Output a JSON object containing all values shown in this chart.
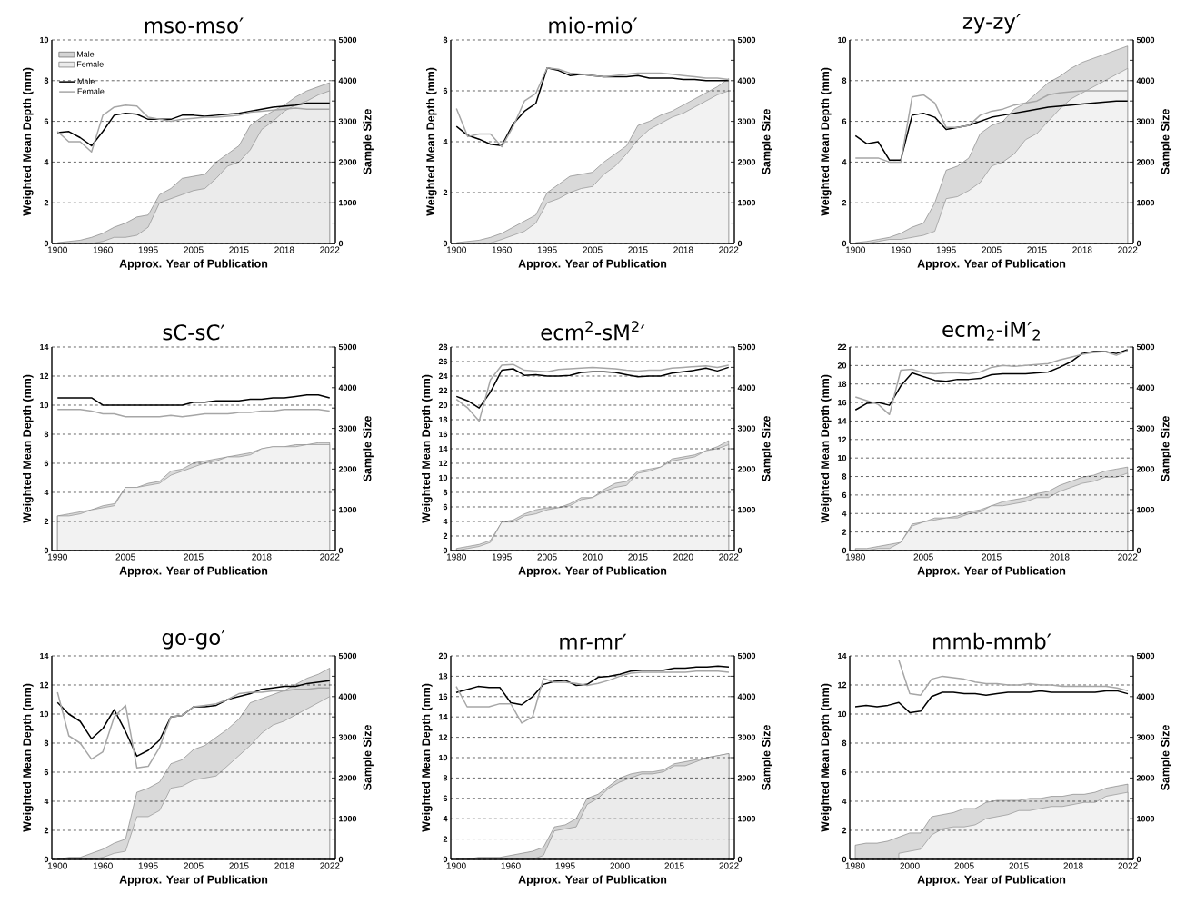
{
  "chart_data": [
    {
      "type": "line",
      "title": "mso-mso′",
      "xlabel": "Approx. Year of Publication",
      "ylabel": "Weighted Mean Depth (mm)",
      "y2label": "Sample Size",
      "legend": "top left",
      "grid": "y",
      "categories": [
        "1900",
        null,
        null,
        null,
        "1960",
        null,
        null,
        null,
        "1995",
        null,
        null,
        null,
        "2005",
        null,
        null,
        null,
        "2015",
        null,
        null,
        null,
        "2018",
        null,
        null,
        null,
        "2022"
      ],
      "ylim": [
        0,
        10
      ],
      "yticks": [
        0,
        2,
        4,
        6,
        8,
        10
      ],
      "y2lim": [
        0,
        5000
      ],
      "y2ticks": [
        0,
        {
          "value": 500,
          "label": null
        },
        1000,
        {
          "value": 1500,
          "label": null
        },
        2000,
        {
          "value": 2500,
          "label": null
        },
        3000,
        {
          "value": 3500,
          "label": null
        },
        4000,
        {
          "value": 4500,
          "label": null
        },
        5000
      ],
      "series": [
        {
          "name": "Male",
          "type": "area",
          "axis": "y2",
          "color": "#d4d4d4",
          "values": [
            20,
            50,
            80,
            150,
            250,
            400,
            500,
            650,
            700,
            1200,
            1350,
            1600,
            1650,
            1700,
            2000,
            2200,
            2400,
            2900,
            3100,
            3250,
            3400,
            3600,
            3750,
            3850,
            3950
          ]
        },
        {
          "name": "Female",
          "type": "area",
          "axis": "y2",
          "color": "#ebebeb",
          "values": [
            0,
            0,
            0,
            0,
            50,
            150,
            150,
            200,
            400,
            1000,
            1100,
            1200,
            1300,
            1350,
            1600,
            1900,
            2000,
            2300,
            2800,
            3000,
            3250,
            3400,
            3500,
            3650,
            3750
          ]
        },
        {
          "name": "Male",
          "color": "#000000",
          "values": [
            5.45,
            5.5,
            5.2,
            4.8,
            5.5,
            6.3,
            6.4,
            6.35,
            6.1,
            6.1,
            6.1,
            6.3,
            6.3,
            6.25,
            6.3,
            6.35,
            6.4,
            6.5,
            6.6,
            6.7,
            6.75,
            6.8,
            6.9,
            6.9,
            6.9
          ]
        },
        {
          "name": "Female",
          "color": "#a6a6a6",
          "values": [
            5.5,
            5.0,
            5.0,
            4.5,
            6.3,
            6.7,
            6.8,
            6.75,
            6.2,
            6.1,
            6.0,
            6.1,
            6.15,
            6.2,
            6.2,
            6.25,
            6.3,
            6.45,
            6.5,
            6.55,
            6.6,
            6.65,
            6.6,
            6.6,
            6.6
          ]
        }
      ]
    },
    {
      "type": "line",
      "title": "mio-mio′",
      "xlabel": "Approx. Year of Publication",
      "ylabel": "Weighted Mean Depth (mm)",
      "y2label": "Sample Size",
      "grid": "y",
      "categories": [
        "1900",
        null,
        null,
        null,
        "1960",
        null,
        null,
        null,
        "1995",
        null,
        null,
        null,
        "2005",
        null,
        null,
        null,
        "2015",
        null,
        null,
        null,
        "2018",
        null,
        null,
        null,
        "2022"
      ],
      "ylim": [
        0,
        8
      ],
      "yticks": [
        0,
        2,
        4,
        6,
        8
      ],
      "y2lim": [
        0,
        5000
      ],
      "y2ticks": [
        0,
        {
          "value": 500,
          "label": null
        },
        1000,
        {
          "value": 1500,
          "label": null
        },
        2000,
        {
          "value": 2500,
          "label": null
        },
        3000,
        {
          "value": 3500,
          "label": null
        },
        4000,
        {
          "value": 4500,
          "label": null
        },
        5000
      ],
      "series": [
        {
          "type": "area",
          "axis": "y2",
          "color": "#d9d9d9",
          "values": [
            20,
            50,
            80,
            150,
            250,
            400,
            550,
            700,
            1250,
            1450,
            1650,
            1700,
            1750,
            2000,
            2200,
            2400,
            2900,
            3000,
            3150,
            3250,
            3400,
            3550,
            3700,
            3850,
            4050
          ]
        },
        {
          "type": "area",
          "axis": "y2",
          "color": "#f2f2f2",
          "values": [
            0,
            0,
            0,
            10,
            100,
            200,
            300,
            500,
            1000,
            1100,
            1250,
            1350,
            1400,
            1700,
            1900,
            2200,
            2550,
            2800,
            2950,
            3100,
            3200,
            3350,
            3500,
            3650,
            3750
          ]
        },
        {
          "color": "#000000",
          "values": [
            4.6,
            4.25,
            4.1,
            3.9,
            3.85,
            4.7,
            5.2,
            5.5,
            6.9,
            6.8,
            6.6,
            6.65,
            6.6,
            6.55,
            6.55,
            6.55,
            6.6,
            6.5,
            6.5,
            6.5,
            6.45,
            6.45,
            6.4,
            6.4,
            6.4
          ]
        },
        {
          "color": "#a6a6a6",
          "values": [
            5.3,
            4.2,
            4.3,
            4.3,
            3.8,
            4.6,
            5.6,
            5.9,
            6.9,
            6.85,
            6.7,
            6.65,
            6.6,
            6.55,
            6.6,
            6.65,
            6.7,
            6.7,
            6.7,
            6.65,
            6.6,
            6.55,
            6.5,
            6.5,
            6.45
          ]
        }
      ]
    },
    {
      "type": "line",
      "title": "zy-zy′",
      "xlabel": "Approx. Year of Publication",
      "ylabel": "Weighted Mean Depth (mm)",
      "y2label": "Sample Size",
      "grid": "y",
      "categories": [
        "1900",
        null,
        null,
        null,
        "1960",
        null,
        null,
        null,
        "1995",
        null,
        null,
        null,
        "2005",
        null,
        null,
        null,
        "2015",
        null,
        null,
        null,
        "2018",
        null,
        null,
        null,
        "2022"
      ],
      "ylim": [
        0,
        10
      ],
      "yticks": [
        0,
        2,
        4,
        6,
        8,
        10
      ],
      "y2lim": [
        0,
        5000
      ],
      "y2ticks": [
        0,
        {
          "value": 500,
          "label": null
        },
        1000,
        {
          "value": 1500,
          "label": null
        },
        2000,
        {
          "value": 2500,
          "label": null
        },
        3000,
        {
          "value": 3500,
          "label": null
        },
        4000,
        {
          "value": 4500,
          "label": null
        },
        5000
      ],
      "series": [
        {
          "type": "area",
          "axis": "y2",
          "color": "#d9d9d9",
          "values": [
            20,
            50,
            100,
            150,
            250,
            400,
            500,
            1000,
            1800,
            1900,
            2100,
            2700,
            2900,
            3000,
            3300,
            3450,
            3700,
            3950,
            4100,
            4300,
            4450,
            4550,
            4650,
            4750,
            4850
          ]
        },
        {
          "type": "area",
          "axis": "y2",
          "color": "#f2f2f2",
          "values": [
            0,
            0,
            50,
            100,
            100,
            150,
            200,
            300,
            1100,
            1150,
            1300,
            1500,
            1900,
            2000,
            2200,
            2550,
            2700,
            3000,
            3300,
            3550,
            3700,
            3850,
            4000,
            4150,
            4300
          ]
        },
        {
          "color": "#000000",
          "values": [
            5.3,
            4.9,
            5.0,
            4.1,
            4.1,
            6.3,
            6.4,
            6.2,
            5.6,
            5.7,
            5.8,
            6.0,
            6.2,
            6.3,
            6.4,
            6.5,
            6.6,
            6.7,
            6.75,
            6.8,
            6.85,
            6.9,
            6.95,
            7.0,
            7.0
          ]
        },
        {
          "color": "#a6a6a6",
          "values": [
            4.2,
            4.2,
            4.2,
            4.0,
            4.0,
            7.2,
            7.3,
            6.9,
            5.7,
            5.7,
            5.8,
            6.3,
            6.5,
            6.6,
            6.8,
            6.9,
            7.0,
            7.3,
            7.4,
            7.45,
            7.5,
            7.5,
            7.5,
            7.5,
            7.5
          ]
        }
      ]
    },
    {
      "type": "line",
      "title": "sC-sC′",
      "xlabel": "Approx. Year of Publication",
      "ylabel": "Weighted Mean Depth (mm)",
      "y2label": "Sample Size",
      "grid": "y",
      "categories": [
        "1990",
        null,
        null,
        null,
        null,
        null,
        "2005",
        null,
        null,
        null,
        null,
        null,
        "2015",
        null,
        null,
        null,
        null,
        null,
        "2018",
        null,
        null,
        null,
        null,
        null,
        "2022"
      ],
      "ylim": [
        0,
        14
      ],
      "yticks": [
        0,
        2,
        4,
        6,
        8,
        10,
        12,
        14
      ],
      "y2lim": [
        0,
        5000
      ],
      "y2ticks": [
        0,
        {
          "value": 500,
          "label": null
        },
        1000,
        {
          "value": 1500,
          "label": null
        },
        2000,
        {
          "value": 2500,
          "label": null
        },
        3000,
        {
          "value": 3500,
          "label": null
        },
        4000,
        {
          "value": 4500,
          "label": null
        },
        5000
      ],
      "series": [
        {
          "type": "area",
          "axis": "y2",
          "color": "#d9d9d9",
          "values": [
            850,
            900,
            950,
            1000,
            1100,
            1150,
            1550,
            1550,
            1650,
            1700,
            1950,
            2000,
            2150,
            2200,
            2250,
            2300,
            2350,
            2400,
            2500,
            2550,
            2550,
            2600,
            2600,
            2650,
            2650
          ]
        },
        {
          "type": "area",
          "axis": "y2",
          "color": "#f2f2f2",
          "values": [
            850,
            850,
            900,
            1000,
            1050,
            1100,
            1550,
            1550,
            1600,
            1650,
            1850,
            1950,
            2050,
            2150,
            2200,
            2300,
            2300,
            2350,
            2500,
            2550,
            2550,
            2550,
            2600,
            2600,
            2600
          ]
        },
        {
          "color": "#000000",
          "values": [
            10.5,
            10.5,
            10.5,
            10.5,
            10.0,
            10.0,
            10.0,
            10.0,
            10.0,
            10.0,
            10.0,
            10.0,
            10.2,
            10.2,
            10.3,
            10.3,
            10.3,
            10.4,
            10.4,
            10.5,
            10.5,
            10.6,
            10.7,
            10.7,
            10.5
          ]
        },
        {
          "color": "#a6a6a6",
          "values": [
            9.7,
            9.7,
            9.7,
            9.6,
            9.4,
            9.4,
            9.2,
            9.2,
            9.2,
            9.2,
            9.3,
            9.2,
            9.3,
            9.4,
            9.4,
            9.4,
            9.5,
            9.5,
            9.6,
            9.6,
            9.7,
            9.7,
            9.7,
            9.7,
            9.6
          ]
        }
      ]
    },
    {
      "type": "line",
      "title": "ecm$^{2}$-sM$^{2}$′",
      "xlabel": "Approx. Year of Publication",
      "ylabel": "Weighted Mean Depth (mm)",
      "y2label": "Sample Size",
      "grid": "y",
      "categories": [
        "1980",
        null,
        null,
        null,
        "1995",
        null,
        null,
        null,
        "2005",
        null,
        null,
        null,
        "2010",
        null,
        null,
        null,
        "2015",
        null,
        null,
        null,
        "2020",
        null,
        null,
        null,
        "2022"
      ],
      "ylim": [
        0,
        28
      ],
      "yticks": [
        0,
        2,
        4,
        6,
        8,
        10,
        12,
        14,
        16,
        18,
        20,
        22,
        24,
        26,
        28
      ],
      "y2lim": [
        0,
        5000
      ],
      "y2ticks": [
        0,
        {
          "value": 500,
          "label": null
        },
        1000,
        {
          "value": 1500,
          "label": null
        },
        2000,
        {
          "value": 2500,
          "label": null
        },
        3000,
        {
          "value": 3500,
          "label": null
        },
        4000,
        {
          "value": 4500,
          "label": null
        },
        5000
      ],
      "series": [
        {
          "type": "area",
          "axis": "y2",
          "color": "#d9d9d9",
          "values": [
            50,
            100,
            150,
            250,
            700,
            750,
            900,
            1000,
            1050,
            1050,
            1150,
            1300,
            1300,
            1500,
            1650,
            1700,
            1950,
            2000,
            2050,
            2250,
            2300,
            2350,
            2450,
            2550,
            2700
          ]
        },
        {
          "type": "area",
          "axis": "y2",
          "color": "#f2f2f2",
          "values": [
            0,
            50,
            100,
            200,
            700,
            700,
            850,
            900,
            1000,
            1050,
            1100,
            1250,
            1300,
            1450,
            1550,
            1600,
            1900,
            1950,
            2050,
            2200,
            2250,
            2300,
            2450,
            2500,
            2600
          ]
        },
        {
          "color": "#000000",
          "values": [
            21.2,
            20.6,
            19.6,
            21.8,
            24.8,
            25.0,
            24.1,
            24.2,
            24.0,
            24.0,
            24.1,
            24.5,
            24.6,
            24.6,
            24.5,
            24.2,
            23.9,
            24.0,
            24.0,
            24.4,
            24.6,
            24.8,
            25.1,
            24.7,
            25.2
          ]
        },
        {
          "color": "#a6a6a6",
          "values": [
            20.8,
            19.6,
            17.8,
            23.5,
            25.5,
            25.6,
            24.8,
            24.7,
            24.6,
            24.9,
            25.0,
            25.1,
            25.2,
            25.1,
            25.0,
            24.8,
            24.7,
            24.8,
            24.8,
            25.1,
            25.2,
            25.3,
            25.4,
            25.2,
            25.5
          ]
        }
      ]
    },
    {
      "type": "line",
      "title": "ecm$_{2}$-iM′$_{2}$",
      "xlabel": "Approx. Year of Publication",
      "ylabel": "Weighted Mean Depth (mm)",
      "y2label": "Sample Size",
      "grid": "y",
      "categories": [
        "1980",
        null,
        null,
        null,
        null,
        null,
        "2005",
        null,
        null,
        null,
        null,
        null,
        "2015",
        null,
        null,
        null,
        null,
        null,
        "2018",
        null,
        null,
        null,
        null,
        null,
        "2022"
      ],
      "ylim": [
        0,
        22
      ],
      "yticks": [
        0,
        2,
        4,
        6,
        8,
        10,
        12,
        14,
        16,
        18,
        20,
        22
      ],
      "y2lim": [
        0,
        5000
      ],
      "y2ticks": [
        0,
        {
          "value": 500,
          "label": null
        },
        1000,
        {
          "value": 1500,
          "label": null
        },
        2000,
        {
          "value": 2500,
          "label": null
        },
        3000,
        {
          "value": 3500,
          "label": null
        },
        4000,
        {
          "value": 4500,
          "label": null
        },
        5000
      ],
      "series": [
        {
          "type": "area",
          "axis": "y2",
          "color": "#d9d9d9",
          "values": [
            50,
            50,
            100,
            150,
            200,
            650,
            700,
            800,
            800,
            850,
            950,
            1000,
            1100,
            1200,
            1250,
            1300,
            1400,
            1450,
            1600,
            1700,
            1800,
            1850,
            1950,
            2000,
            2050
          ]
        },
        {
          "type": "area",
          "axis": "y2",
          "color": "#f2f2f2",
          "values": [
            0,
            0,
            50,
            50,
            200,
            600,
            700,
            750,
            800,
            800,
            900,
            950,
            1100,
            1100,
            1150,
            1200,
            1300,
            1300,
            1450,
            1550,
            1650,
            1700,
            1800,
            1800,
            1900
          ]
        },
        {
          "color": "#000000",
          "values": [
            15.2,
            15.9,
            16.0,
            15.7,
            17.8,
            19.2,
            18.8,
            18.4,
            18.3,
            18.5,
            18.5,
            18.6,
            19.0,
            19.1,
            19.1,
            19.1,
            19.2,
            19.3,
            19.8,
            20.4,
            21.3,
            21.5,
            21.5,
            21.3,
            21.7
          ]
        },
        {
          "color": "#a6a6a6",
          "values": [
            16.6,
            16.2,
            15.8,
            14.7,
            19.5,
            19.6,
            19.2,
            19.1,
            19.2,
            19.2,
            19.1,
            19.3,
            19.8,
            20.0,
            19.9,
            20.0,
            20.1,
            20.2,
            20.6,
            20.9,
            21.2,
            21.4,
            21.5,
            21.1,
            21.6
          ]
        }
      ]
    },
    {
      "type": "line",
      "title": "go-go′",
      "xlabel": "Approx. Year of Publication",
      "ylabel": "Weighted Mean Depth (mm)",
      "y2label": "Sample Size",
      "grid": "y",
      "categories": [
        "1900",
        null,
        null,
        null,
        "1960",
        null,
        null,
        null,
        "1995",
        null,
        null,
        null,
        "2005",
        null,
        null,
        null,
        "2015",
        null,
        null,
        null,
        "2018",
        null,
        null,
        null,
        "2022"
      ],
      "ylim": [
        0,
        14
      ],
      "yticks": [
        0,
        2,
        4,
        6,
        8,
        10,
        12,
        14
      ],
      "y2lim": [
        0,
        5000
      ],
      "y2ticks": [
        0,
        {
          "value": 500,
          "label": null
        },
        1000,
        {
          "value": 1500,
          "label": null
        },
        2000,
        {
          "value": 2500,
          "label": null
        },
        3000,
        {
          "value": 3500,
          "label": null
        },
        4000,
        {
          "value": 4500,
          "label": null
        },
        5000
      ],
      "series": [
        {
          "type": "area",
          "axis": "y2",
          "color": "#d9d9d9",
          "values": [
            0,
            50,
            50,
            150,
            250,
            400,
            500,
            1650,
            1750,
            1900,
            2350,
            2450,
            2700,
            2800,
            3000,
            3200,
            3450,
            3850,
            3950,
            4050,
            4150,
            4300,
            4450,
            4550,
            4700
          ]
        },
        {
          "type": "area",
          "axis": "y2",
          "color": "#f2f2f2",
          "values": [
            0,
            0,
            0,
            0,
            50,
            150,
            200,
            1050,
            1050,
            1200,
            1750,
            1800,
            1950,
            2000,
            2050,
            2300,
            2550,
            2800,
            3100,
            3300,
            3400,
            3550,
            3700,
            3850,
            4000
          ]
        },
        {
          "color": "#000000",
          "values": [
            10.8,
            10.0,
            9.5,
            8.3,
            9.0,
            10.3,
            8.8,
            7.1,
            7.5,
            8.2,
            9.8,
            9.9,
            10.5,
            10.5,
            10.6,
            11.0,
            11.2,
            11.4,
            11.7,
            11.8,
            11.9,
            11.9,
            12.1,
            12.2,
            12.3
          ]
        },
        {
          "color": "#a6a6a6",
          "values": [
            11.5,
            8.5,
            8.0,
            6.9,
            7.4,
            9.8,
            10.6,
            6.3,
            6.4,
            7.7,
            9.8,
            9.9,
            10.5,
            10.6,
            10.7,
            11.0,
            11.4,
            11.5,
            11.5,
            11.6,
            11.6,
            11.7,
            11.7,
            11.8,
            11.8
          ]
        }
      ]
    },
    {
      "type": "line",
      "title": "mr-mr′",
      "xlabel": "Approx. Year of Publication",
      "ylabel": "Weighted Mean Depth (mm)",
      "y2label": "Sample Size",
      "grid": "y",
      "categories": [
        "1900",
        null,
        null,
        null,
        null,
        "1960",
        null,
        null,
        null,
        null,
        "1995",
        null,
        null,
        null,
        null,
        "2000",
        null,
        null,
        null,
        null,
        "2015",
        null,
        null,
        null,
        null,
        "2022"
      ],
      "ylim": [
        0,
        20
      ],
      "yticks": [
        0,
        2,
        4,
        6,
        8,
        10,
        12,
        14,
        16,
        18,
        20
      ],
      "y2lim": [
        0,
        5000
      ],
      "y2ticks": [
        0,
        {
          "value": 500,
          "label": null
        },
        1000,
        {
          "value": 1500,
          "label": null
        },
        2000,
        {
          "value": 2500,
          "label": null
        },
        3000,
        {
          "value": 3500,
          "label": null
        },
        4000,
        {
          "value": 4500,
          "label": null
        },
        5000
      ],
      "series": [
        {
          "type": "area",
          "axis": "y2",
          "color": "#d4d4d4",
          "values": [
            0,
            0,
            50,
            50,
            50,
            100,
            150,
            200,
            300,
            800,
            850,
            1000,
            1500,
            1600,
            1800,
            2000,
            2100,
            2150,
            2150,
            2200,
            2350,
            2400,
            2450,
            2500,
            2550,
            2600
          ]
        },
        {
          "type": "area",
          "axis": "y2",
          "color": "#ebebeb",
          "values": [
            null,
            null,
            null,
            null,
            null,
            null,
            null,
            0,
            100,
            700,
            750,
            800,
            1350,
            1500,
            1750,
            1900,
            2000,
            2100,
            2100,
            2150,
            2300,
            2300,
            2400,
            2500,
            2550,
            2600
          ]
        },
        {
          "color": "#000000",
          "values": [
            16.4,
            16.7,
            17.0,
            16.9,
            16.9,
            15.4,
            15.2,
            16.0,
            17.2,
            17.5,
            17.6,
            17.1,
            17.2,
            17.9,
            18.0,
            18.2,
            18.5,
            18.6,
            18.6,
            18.6,
            18.8,
            18.8,
            18.9,
            18.9,
            19.0,
            18.9
          ]
        },
        {
          "color": "#a6a6a6",
          "values": [
            17.0,
            15.0,
            15.0,
            15.0,
            15.3,
            15.3,
            13.4,
            14.0,
            17.8,
            17.4,
            17.4,
            17.3,
            17.1,
            17.3,
            17.6,
            18.0,
            18.3,
            18.4,
            18.4,
            18.4,
            18.4,
            18.4,
            18.5,
            18.5,
            18.5,
            18.4
          ]
        }
      ]
    },
    {
      "type": "line",
      "title": "mmb-mmb′",
      "xlabel": "Approx. Year of Publication",
      "ylabel": "Weighted Mean Depth (mm)",
      "y2label": "Sample Size",
      "grid": "y",
      "categories": [
        "1980",
        null,
        null,
        null,
        null,
        "2000",
        null,
        null,
        null,
        null,
        "2005",
        null,
        null,
        null,
        null,
        "2015",
        null,
        null,
        null,
        null,
        "2018",
        null,
        null,
        null,
        null,
        "2022"
      ],
      "ylim": [
        0,
        14
      ],
      "yticks": [
        0,
        2,
        4,
        6,
        8,
        10,
        12,
        14
      ],
      "y2lim": [
        0,
        5000
      ],
      "y2ticks": [
        0,
        {
          "value": 500,
          "label": null
        },
        1000,
        {
          "value": 1500,
          "label": null
        },
        2000,
        {
          "value": 2500,
          "label": null
        },
        3000,
        {
          "value": 3500,
          "label": null
        },
        4000,
        {
          "value": 4500,
          "label": null
        },
        5000
      ],
      "series": [
        {
          "type": "area",
          "axis": "y2",
          "color": "#d9d9d9",
          "values": [
            350,
            400,
            400,
            450,
            550,
            650,
            650,
            1050,
            1100,
            1150,
            1250,
            1250,
            1400,
            1450,
            1450,
            1450,
            1500,
            1500,
            1550,
            1550,
            1600,
            1600,
            1650,
            1750,
            1800,
            1850
          ]
        },
        {
          "type": "area",
          "axis": "y2",
          "color": "#f2f2f2",
          "values": [
            null,
            null,
            null,
            null,
            150,
            200,
            250,
            600,
            750,
            800,
            800,
            850,
            1000,
            1050,
            1100,
            1200,
            1200,
            1250,
            1300,
            1300,
            1350,
            1400,
            1400,
            1550,
            1600,
            1650
          ]
        },
        {
          "color": "#000000",
          "values": [
            10.5,
            10.6,
            10.5,
            10.6,
            10.8,
            10.1,
            10.2,
            11.2,
            11.5,
            11.5,
            11.4,
            11.4,
            11.3,
            11.4,
            11.5,
            11.5,
            11.5,
            11.6,
            11.5,
            11.5,
            11.5,
            11.5,
            11.5,
            11.6,
            11.6,
            11.4
          ]
        },
        {
          "color": "#a6a6a6",
          "values": [
            null,
            null,
            null,
            null,
            13.7,
            11.4,
            11.3,
            12.4,
            12.6,
            12.5,
            12.4,
            12.2,
            12.1,
            12.1,
            12.0,
            12.0,
            12.1,
            12.0,
            12.0,
            11.9,
            11.9,
            11.9,
            11.9,
            11.9,
            11.8,
            11.6
          ]
        }
      ]
    }
  ]
}
